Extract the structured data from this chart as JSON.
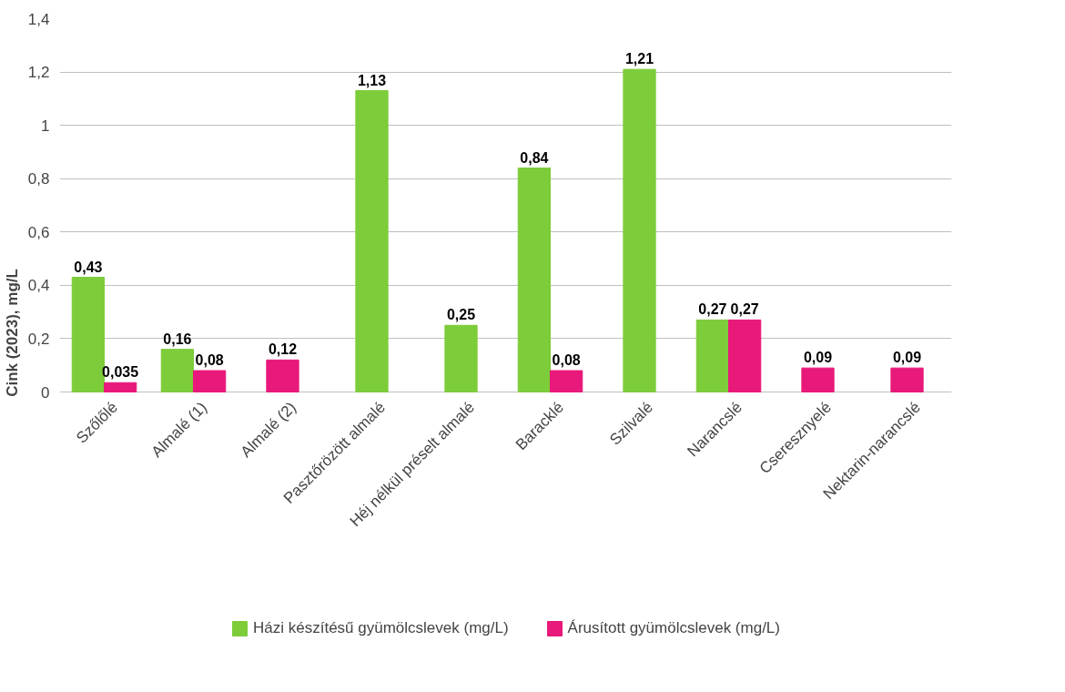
{
  "chart_data": {
    "type": "bar",
    "ylabel": "Cink (2023), mg/L",
    "categories": [
      "Szőlőlé",
      "Almalé (1)",
      "Almalé (2)",
      "Pasztőrözött almalé",
      "Héj nélkül préselt almalé",
      "Baracklé",
      "Szilvalé",
      "Narancslé",
      "Cseresznyelé",
      "Nektarin-narancslé"
    ],
    "series": [
      {
        "name": "Házi készítésű gyümölcslevek (mg/L)",
        "color": "#7dcc3a",
        "values": [
          0.43,
          0.16,
          null,
          1.13,
          0.25,
          0.84,
          1.21,
          0.27,
          null,
          null
        ],
        "value_labels": [
          "0,43",
          "0,16",
          null,
          "1,13",
          "0,25",
          "0,84",
          "1,21",
          "0,27",
          null,
          null
        ]
      },
      {
        "name": "Árusított gyümölcslevek (mg/L)",
        "color": "#e8197a",
        "values": [
          0.035,
          0.08,
          0.12,
          null,
          null,
          0.08,
          null,
          0.27,
          0.09,
          0.09
        ],
        "value_labels": [
          "0,035",
          "0,08",
          "0,12",
          null,
          null,
          "0,08",
          null,
          "0,27",
          "0,09",
          "0,09"
        ]
      }
    ],
    "ylim": [
      0,
      1.4
    ],
    "yticks": [
      0,
      {
        "value": 0.2,
        "label": "0,2"
      },
      {
        "value": 0.4,
        "label": "0,4"
      },
      {
        "value": 0.6,
        "label": "0,6"
      },
      {
        "value": 0.8,
        "label": "0,8"
      },
      1,
      {
        "value": 1.2,
        "label": "1,2"
      },
      {
        "value": 1.4,
        "label": "1,4"
      }
    ],
    "grid": "y",
    "legend": "bottom"
  }
}
